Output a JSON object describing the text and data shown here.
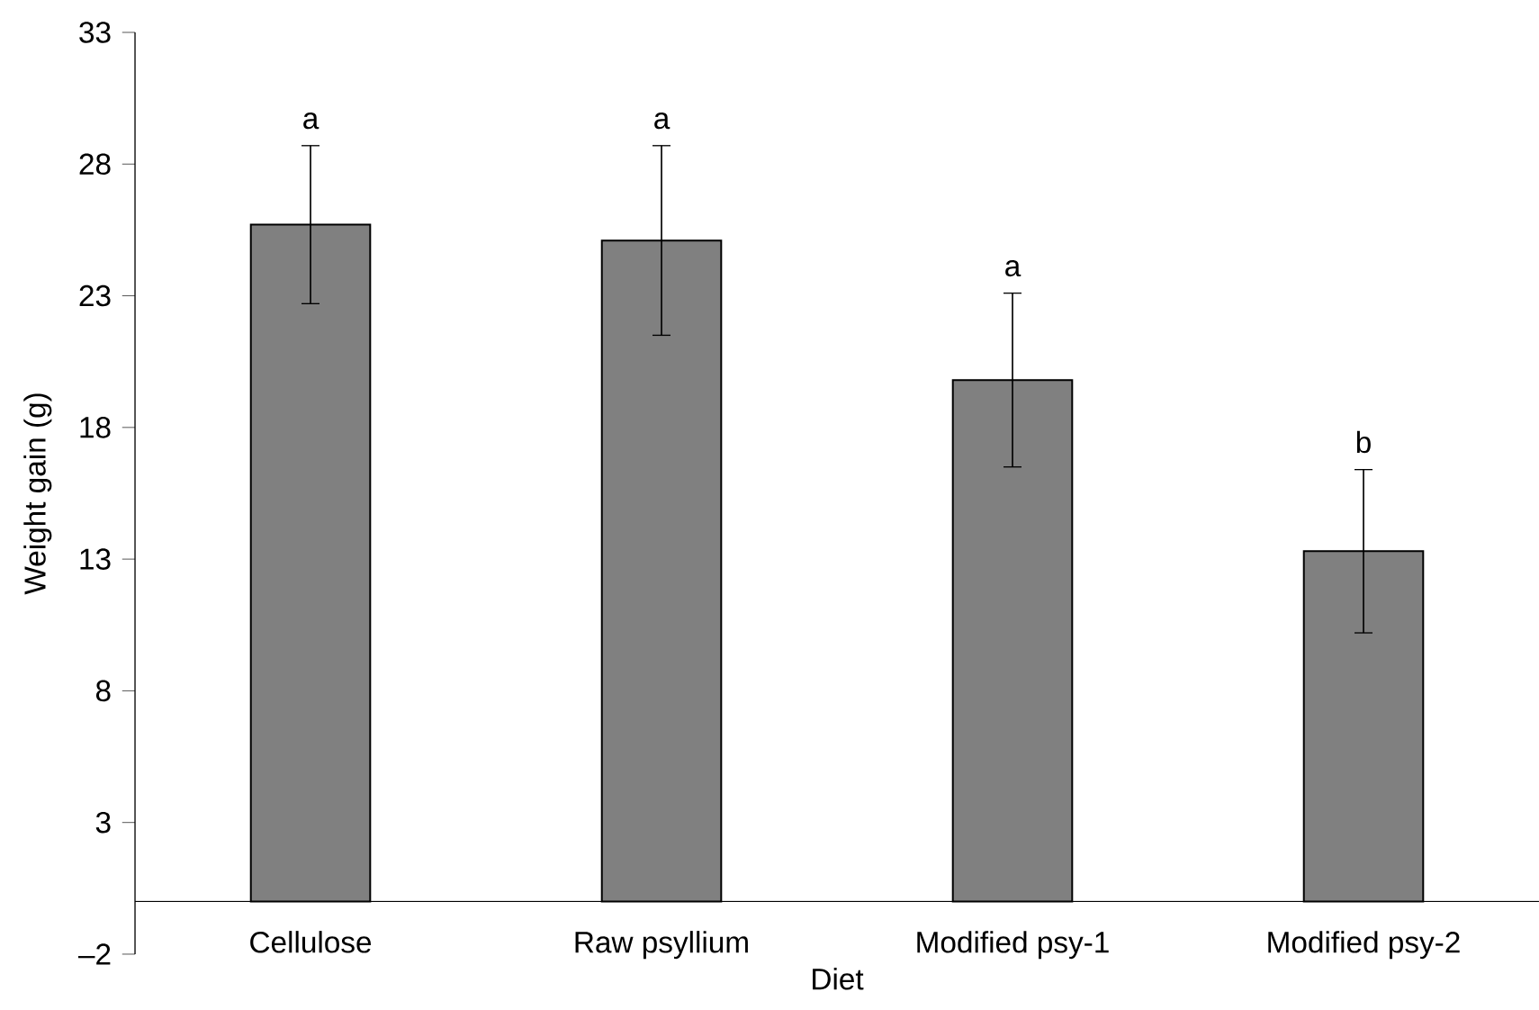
{
  "chart_data": {
    "type": "bar",
    "xlabel": "Diet",
    "ylabel": "Weight gain (g)",
    "categories": [
      "Cellulose",
      "Raw psyllium",
      "Modified psy-1",
      "Modified psy-2"
    ],
    "values": [
      25.7,
      25.1,
      19.8,
      13.3
    ],
    "errors": [
      3.0,
      3.6,
      3.3,
      3.1
    ],
    "color": "#808080",
    "ylim": [
      -2,
      33
    ],
    "yticks": [
      {
        "value": -2,
        "label": "–2"
      },
      3,
      8,
      13,
      18,
      23,
      28,
      33
    ],
    "annotations": [
      "a",
      "a",
      "a",
      "b"
    ]
  }
}
